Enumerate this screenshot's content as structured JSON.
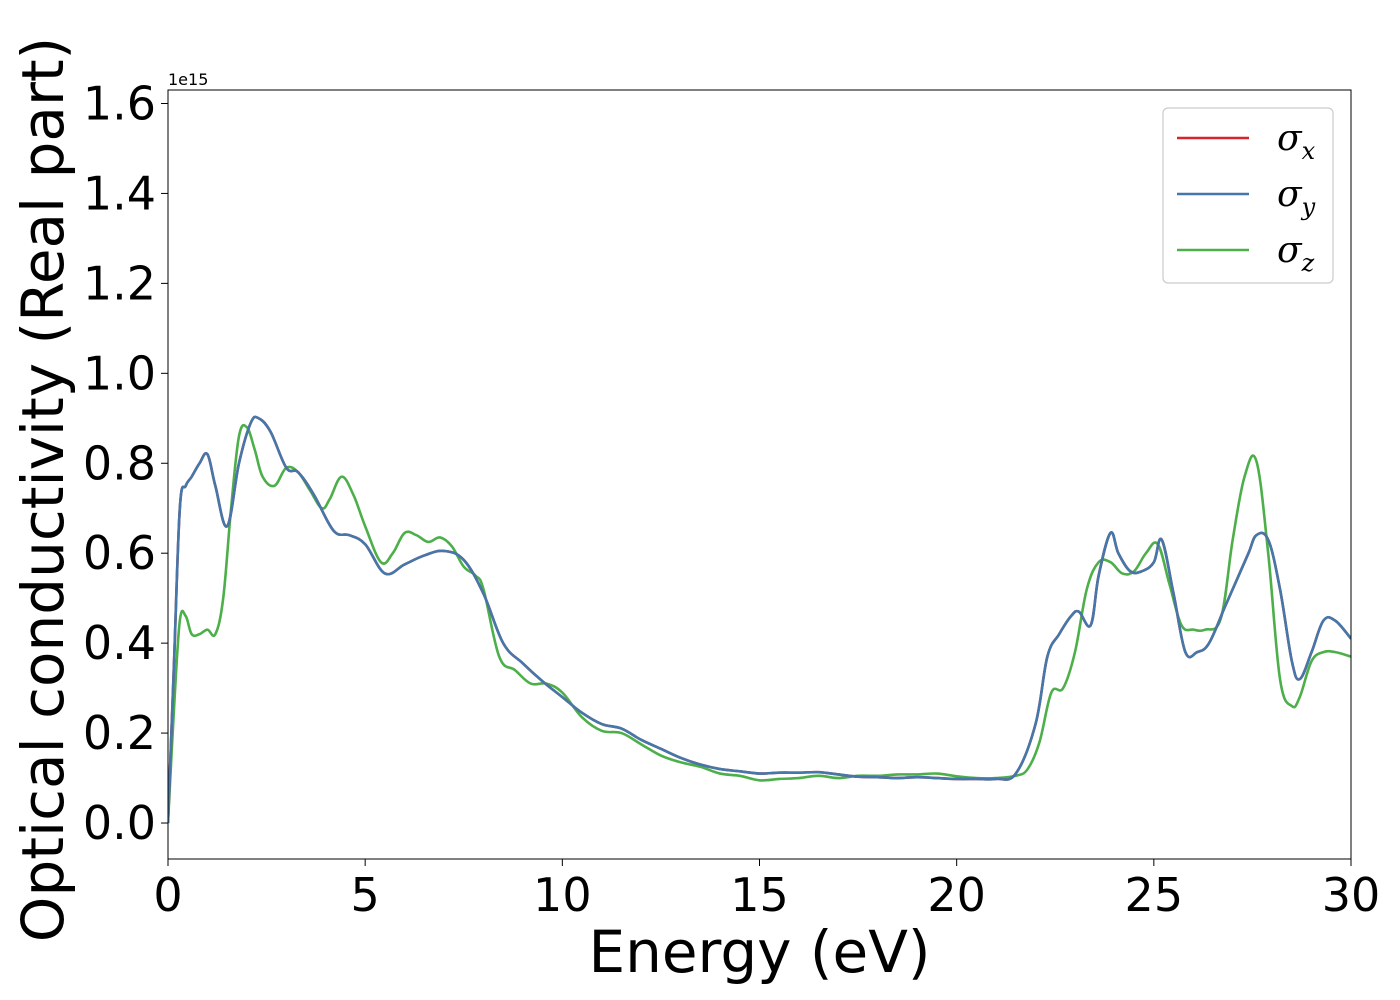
{
  "chart_data": {
    "type": "line",
    "title": "",
    "xlabel": "Energy (eV)",
    "ylabel": "Optical conductivity (Real part)",
    "y_offset_label": "1e15",
    "xlim": [
      0,
      30
    ],
    "ylim": [
      -0.08,
      1.63
    ],
    "x_ticks": [
      0,
      5,
      10,
      15,
      20,
      25,
      30
    ],
    "x_tick_labels": [
      "0",
      "5",
      "10",
      "15",
      "20",
      "25",
      "30"
    ],
    "y_ticks": [
      0.0,
      0.2,
      0.4,
      0.6,
      0.8,
      1.0,
      1.2,
      1.4,
      1.6
    ],
    "y_tick_labels": [
      "0.0",
      "0.2",
      "0.4",
      "0.6",
      "0.8",
      "1.0",
      "1.2",
      "1.4",
      "1.6"
    ],
    "grid": false,
    "legend_position": "top-right",
    "series": [
      {
        "name": "x",
        "legend_symbol": "σ",
        "legend_subscript": "x",
        "color": "#d62728",
        "x": [
          0,
          0.15,
          0.3,
          0.45,
          0.6,
          0.8,
          1.0,
          1.2,
          1.5,
          1.8,
          2.1,
          2.3,
          2.6,
          3.0,
          3.3,
          3.7,
          4.2,
          4.6,
          5.0,
          5.5,
          6.0,
          6.5,
          7.0,
          7.5,
          8.0,
          8.5,
          9.0,
          9.5,
          10.0,
          10.5,
          11.0,
          11.5,
          12.0,
          12.5,
          13.0,
          13.5,
          14.0,
          14.5,
          15.0,
          15.5,
          16.0,
          16.5,
          17.0,
          17.5,
          18.0,
          18.5,
          19.0,
          19.5,
          20.0,
          20.5,
          21.0,
          21.5,
          22.0,
          22.3,
          22.6,
          22.9,
          23.1,
          23.4,
          23.6,
          23.9,
          24.1,
          24.4,
          24.7,
          25.0,
          25.2,
          25.5,
          25.8,
          26.1,
          26.4,
          26.8,
          27.1,
          27.4,
          27.6,
          27.9,
          28.2,
          28.5,
          28.7,
          29.0,
          29.3,
          29.6,
          30.0
        ],
        "y": [
          0.0,
          0.35,
          0.7,
          0.75,
          0.77,
          0.8,
          0.82,
          0.75,
          0.66,
          0.8,
          0.89,
          0.9,
          0.87,
          0.79,
          0.78,
          0.73,
          0.65,
          0.64,
          0.62,
          0.555,
          0.575,
          0.595,
          0.605,
          0.585,
          0.51,
          0.4,
          0.355,
          0.315,
          0.28,
          0.245,
          0.22,
          0.21,
          0.185,
          0.165,
          0.145,
          0.13,
          0.12,
          0.115,
          0.11,
          0.112,
          0.112,
          0.113,
          0.108,
          0.103,
          0.102,
          0.1,
          0.102,
          0.1,
          0.098,
          0.098,
          0.098,
          0.11,
          0.22,
          0.37,
          0.42,
          0.46,
          0.47,
          0.44,
          0.55,
          0.645,
          0.6,
          0.56,
          0.56,
          0.58,
          0.63,
          0.51,
          0.38,
          0.38,
          0.4,
          0.48,
          0.54,
          0.6,
          0.64,
          0.63,
          0.52,
          0.36,
          0.32,
          0.38,
          0.45,
          0.45,
          0.41
        ]
      },
      {
        "name": "y",
        "legend_symbol": "σ",
        "legend_subscript": "y",
        "color": "#4477aa",
        "x": [
          0,
          0.15,
          0.3,
          0.45,
          0.6,
          0.8,
          1.0,
          1.2,
          1.5,
          1.8,
          2.1,
          2.3,
          2.6,
          3.0,
          3.3,
          3.7,
          4.2,
          4.6,
          5.0,
          5.5,
          6.0,
          6.5,
          7.0,
          7.5,
          8.0,
          8.5,
          9.0,
          9.5,
          10.0,
          10.5,
          11.0,
          11.5,
          12.0,
          12.5,
          13.0,
          13.5,
          14.0,
          14.5,
          15.0,
          15.5,
          16.0,
          16.5,
          17.0,
          17.5,
          18.0,
          18.5,
          19.0,
          19.5,
          20.0,
          20.5,
          21.0,
          21.5,
          22.0,
          22.3,
          22.6,
          22.9,
          23.1,
          23.4,
          23.6,
          23.9,
          24.1,
          24.4,
          24.7,
          25.0,
          25.2,
          25.5,
          25.8,
          26.1,
          26.4,
          26.8,
          27.1,
          27.4,
          27.6,
          27.9,
          28.2,
          28.5,
          28.7,
          29.0,
          29.3,
          29.6,
          30.0
        ],
        "y": [
          0.0,
          0.35,
          0.7,
          0.75,
          0.77,
          0.8,
          0.82,
          0.75,
          0.66,
          0.8,
          0.89,
          0.9,
          0.87,
          0.79,
          0.78,
          0.73,
          0.65,
          0.64,
          0.62,
          0.555,
          0.575,
          0.595,
          0.605,
          0.585,
          0.51,
          0.4,
          0.355,
          0.315,
          0.28,
          0.245,
          0.22,
          0.21,
          0.185,
          0.165,
          0.145,
          0.13,
          0.12,
          0.115,
          0.11,
          0.112,
          0.112,
          0.113,
          0.108,
          0.103,
          0.102,
          0.1,
          0.102,
          0.1,
          0.098,
          0.098,
          0.098,
          0.11,
          0.22,
          0.37,
          0.42,
          0.46,
          0.47,
          0.44,
          0.55,
          0.645,
          0.6,
          0.56,
          0.56,
          0.58,
          0.63,
          0.51,
          0.38,
          0.38,
          0.4,
          0.48,
          0.54,
          0.6,
          0.64,
          0.63,
          0.52,
          0.36,
          0.32,
          0.38,
          0.45,
          0.45,
          0.41
        ]
      },
      {
        "name": "z",
        "legend_symbol": "σ",
        "legend_subscript": "z",
        "color": "#4daf4a",
        "x": [
          0,
          0.15,
          0.3,
          0.45,
          0.6,
          0.8,
          1.0,
          1.2,
          1.4,
          1.6,
          1.8,
          2.0,
          2.2,
          2.4,
          2.7,
          3.0,
          3.3,
          3.6,
          3.9,
          4.1,
          4.4,
          4.7,
          5.0,
          5.4,
          5.7,
          6.0,
          6.3,
          6.6,
          6.9,
          7.2,
          7.5,
          7.8,
          8.0,
          8.4,
          8.8,
          9.2,
          9.6,
          10.0,
          10.5,
          11.0,
          11.5,
          12.0,
          12.5,
          13.0,
          13.5,
          14.0,
          14.5,
          15.0,
          15.5,
          16.0,
          16.5,
          17.0,
          17.5,
          18.0,
          18.5,
          19.0,
          19.5,
          20.0,
          20.5,
          21.0,
          21.5,
          21.8,
          22.1,
          22.4,
          22.7,
          23.0,
          23.3,
          23.6,
          23.9,
          24.2,
          24.5,
          24.8,
          25.1,
          25.4,
          25.7,
          26.0,
          26.3,
          26.7,
          27.0,
          27.3,
          27.6,
          27.9,
          28.2,
          28.5,
          28.7,
          29.0,
          29.3,
          29.6,
          30.0
        ],
        "y": [
          0.0,
          0.25,
          0.45,
          0.46,
          0.42,
          0.42,
          0.43,
          0.42,
          0.5,
          0.7,
          0.86,
          0.88,
          0.83,
          0.77,
          0.75,
          0.79,
          0.78,
          0.74,
          0.7,
          0.72,
          0.77,
          0.73,
          0.66,
          0.58,
          0.6,
          0.645,
          0.64,
          0.625,
          0.635,
          0.615,
          0.57,
          0.55,
          0.52,
          0.37,
          0.34,
          0.31,
          0.31,
          0.29,
          0.235,
          0.205,
          0.2,
          0.175,
          0.15,
          0.135,
          0.125,
          0.11,
          0.105,
          0.095,
          0.098,
          0.1,
          0.105,
          0.1,
          0.105,
          0.105,
          0.108,
          0.108,
          0.11,
          0.104,
          0.1,
          0.1,
          0.105,
          0.12,
          0.18,
          0.29,
          0.3,
          0.38,
          0.52,
          0.58,
          0.58,
          0.555,
          0.56,
          0.6,
          0.62,
          0.53,
          0.44,
          0.43,
          0.43,
          0.455,
          0.63,
          0.77,
          0.805,
          0.6,
          0.32,
          0.26,
          0.28,
          0.36,
          0.38,
          0.38,
          0.37
        ]
      }
    ]
  }
}
